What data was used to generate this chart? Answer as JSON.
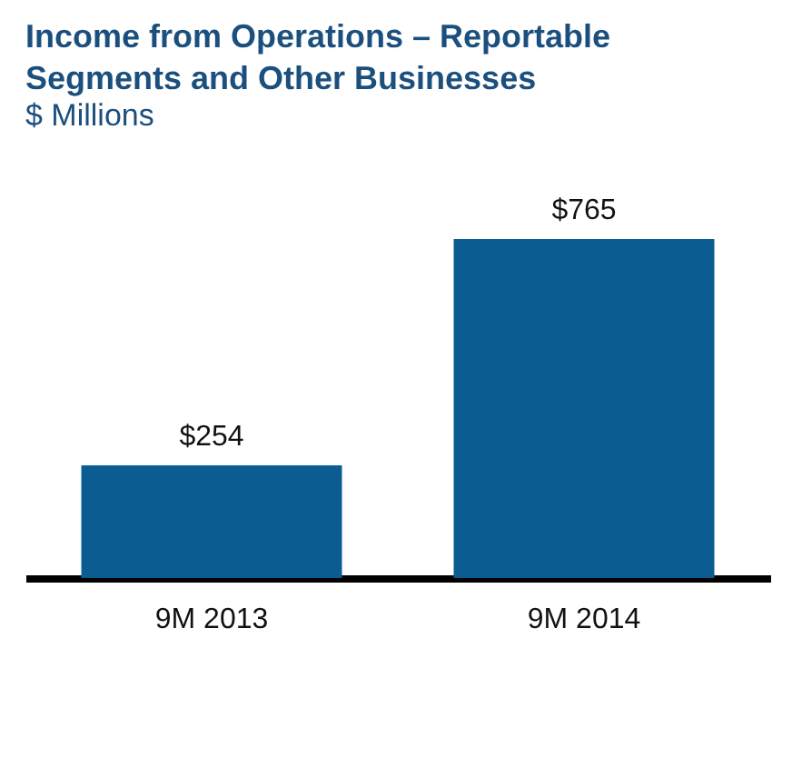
{
  "chart_data": {
    "type": "bar",
    "title": "Income from Operations – Reportable Segments and Other Businesses",
    "subtitle": "$ Millions",
    "categories": [
      "9M 2013",
      "9M 2014"
    ],
    "values": [
      254,
      765
    ],
    "color": "#0b5d91",
    "value_labels": [
      "$254",
      "$765"
    ]
  }
}
